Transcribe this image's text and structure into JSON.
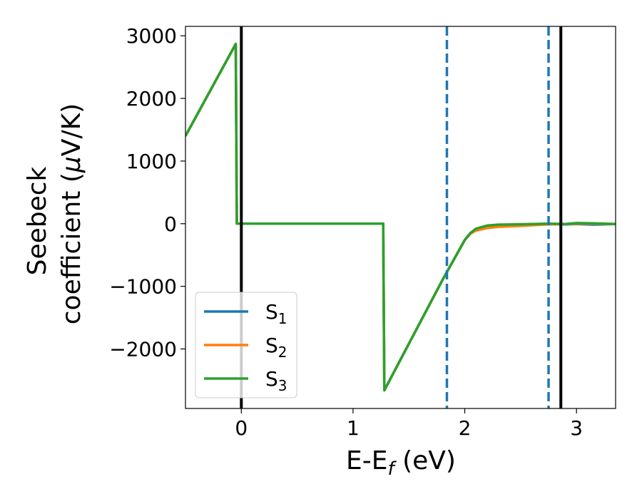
{
  "chart_data": {
    "type": "line",
    "xlabel": "E-E",
    "xlabel_sub": "f",
    "xlabel_unit": " (eV)",
    "ylabel_line1": "Seebeck",
    "ylabel_line2": "coefficient  (",
    "ylabel_mu": "μ",
    "ylabel_unit": "V/K)",
    "xlim": [
      -0.5,
      3.35
    ],
    "ylim": [
      -2950,
      3150
    ],
    "xticks": [
      0,
      1,
      2,
      3
    ],
    "xtick_labels": [
      "0",
      "1",
      "2",
      "3"
    ],
    "yticks": [
      3000,
      2000,
      1000,
      0,
      -1000,
      -2000
    ],
    "ytick_labels": [
      "3000",
      "2000",
      "1000",
      "0",
      "−1000",
      "−2000"
    ],
    "grid": false,
    "legend_placement": "lower-left",
    "vertical_lines": [
      {
        "x": 0.0,
        "style": "solid",
        "color": "#000000"
      },
      {
        "x": 2.86,
        "style": "solid",
        "color": "#000000"
      },
      {
        "x": 1.84,
        "style": "dashed",
        "color": "#1f77b4"
      },
      {
        "x": 2.75,
        "style": "dashed",
        "color": "#1f77b4"
      }
    ],
    "series": [
      {
        "name": "S",
        "sub": "1",
        "color": "#1f77b4",
        "x": [
          -0.5,
          -0.05,
          -0.04,
          1.27,
          1.28,
          1.8,
          2.0,
          2.05,
          2.1,
          2.2,
          2.3,
          2.45,
          2.6,
          2.75,
          2.9,
          3.0,
          3.15,
          3.35
        ],
        "y": [
          1400,
          2870,
          0,
          0,
          -2660,
          -900,
          -260,
          -150,
          -90,
          -40,
          -20,
          -15,
          -10,
          -5,
          -10,
          -5,
          -15,
          -5
        ]
      },
      {
        "name": "S",
        "sub": "2",
        "color": "#ff7f0e",
        "x": [
          -0.5,
          -0.05,
          -0.04,
          1.27,
          1.28,
          1.8,
          2.0,
          2.05,
          2.1,
          2.2,
          2.3,
          2.45,
          2.6,
          2.75,
          2.9,
          3.0,
          3.15,
          3.35
        ],
        "y": [
          1400,
          2870,
          0,
          0,
          -2660,
          -900,
          -260,
          -160,
          -110,
          -70,
          -50,
          -40,
          -25,
          -10,
          -5,
          0,
          0,
          -5
        ]
      },
      {
        "name": "S",
        "sub": "3",
        "color": "#2ca02c",
        "x": [
          -0.5,
          -0.05,
          -0.04,
          1.27,
          1.28,
          1.8,
          2.0,
          2.05,
          2.1,
          2.2,
          2.3,
          2.45,
          2.6,
          2.75,
          2.9,
          3.0,
          3.15,
          3.35
        ],
        "y": [
          1400,
          2870,
          0,
          0,
          -2660,
          -900,
          -260,
          -150,
          -80,
          -30,
          -15,
          -10,
          -5,
          0,
          -5,
          10,
          5,
          -5
        ]
      }
    ]
  }
}
